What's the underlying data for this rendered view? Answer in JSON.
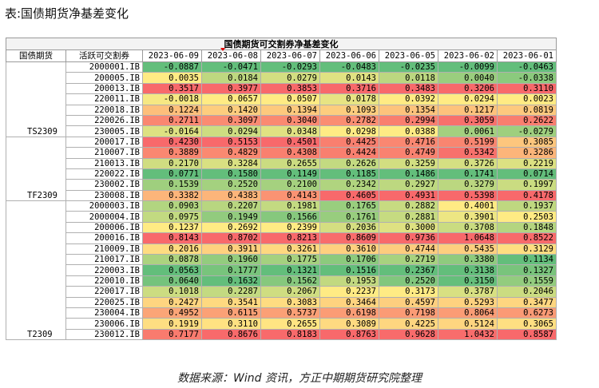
{
  "caption": "表:国债期货净基差变化",
  "table": {
    "title": "国债期货可交割券净基差变化",
    "header_left": [
      "国债期货",
      "活跃可交割券"
    ],
    "dates": [
      "2023-06-09",
      "2023-06-08",
      "2023-06-07",
      "2023-06-06",
      "2023-06-05",
      "2023-06-02",
      "2023-06-01"
    ],
    "groups": [
      {
        "contract": "TS2309",
        "bonds": [
          {
            "code": "2000001.IB",
            "values": [
              "-0.0887",
              "-0.0471",
              "-0.0293",
              "-0.0483",
              "-0.0235",
              "-0.0099",
              "-0.0463"
            ]
          },
          {
            "code": "200005.IB",
            "values": [
              "0.0035",
              "0.0184",
              "0.0279",
              "0.0143",
              "0.0118",
              "0.0040",
              "-0.0338"
            ]
          },
          {
            "code": "200013.IB",
            "values": [
              "0.3517",
              "0.3977",
              "0.3853",
              "0.3716",
              "0.3483",
              "0.3206",
              "0.3110"
            ]
          },
          {
            "code": "220011.IB",
            "values": [
              "-0.0018",
              "0.0657",
              "0.0507",
              "0.0178",
              "0.0392",
              "0.0294",
              "0.0023"
            ]
          },
          {
            "code": "220018.IB",
            "values": [
              "0.1224",
              "0.1420",
              "0.1394",
              "0.1093",
              "0.1354",
              "0.1217",
              "0.0819"
            ]
          },
          {
            "code": "220026.IB",
            "values": [
              "0.2711",
              "0.3097",
              "0.3040",
              "0.2782",
              "0.2994",
              "0.3059",
              "0.2622"
            ]
          },
          {
            "code": "230005.IB",
            "values": [
              "-0.0164",
              "0.0294",
              "0.0348",
              "0.0298",
              "0.0388",
              "0.0061",
              "-0.0279"
            ]
          }
        ]
      },
      {
        "contract": "TF2309",
        "bonds": [
          {
            "code": "200017.IB",
            "values": [
              "0.4230",
              "0.5153",
              "0.4501",
              "0.4425",
              "0.4716",
              "0.5199",
              "0.3085"
            ]
          },
          {
            "code": "210007.IB",
            "values": [
              "0.3889",
              "0.4829",
              "0.4308",
              "0.4424",
              "0.4749",
              "0.5342",
              "0.3286"
            ]
          },
          {
            "code": "210013.IB",
            "values": [
              "0.2170",
              "0.3284",
              "0.2655",
              "0.2626",
              "0.3259",
              "0.3726",
              "0.2219"
            ]
          },
          {
            "code": "220022.IB",
            "values": [
              "0.0771",
              "0.1580",
              "0.1149",
              "0.1185",
              "0.1486",
              "0.1741",
              "0.0714"
            ]
          },
          {
            "code": "230002.IB",
            "values": [
              "0.1539",
              "0.2520",
              "0.2100",
              "0.2342",
              "0.2927",
              "0.3279",
              "0.1997"
            ]
          },
          {
            "code": "230008.IB",
            "values": [
              "0.3382",
              "0.4383",
              "0.4143",
              "0.4605",
              "0.4931",
              "0.5398",
              "0.4178"
            ]
          }
        ]
      },
      {
        "contract": "T2309",
        "bonds": [
          {
            "code": "2000003.IB",
            "values": [
              "0.0903",
              "0.2207",
              "0.1981",
              "0.1765",
              "0.2882",
              "0.4001",
              "0.1937"
            ]
          },
          {
            "code": "2000004.IB",
            "values": [
              "0.0975",
              "0.1949",
              "0.1566",
              "0.1761",
              "0.2881",
              "0.3901",
              "0.2503"
            ]
          },
          {
            "code": "200006.IB",
            "values": [
              "0.1237",
              "0.2692",
              "0.2399",
              "0.2036",
              "0.3000",
              "0.3708",
              "0.1848"
            ]
          },
          {
            "code": "200016.IB",
            "values": [
              "0.8143",
              "0.8702",
              "0.8213",
              "0.8609",
              "0.9736",
              "1.0648",
              "0.8522"
            ]
          },
          {
            "code": "210009.IB",
            "values": [
              "0.2016",
              "0.3911",
              "0.3261",
              "0.3610",
              "0.4744",
              "0.5435",
              "0.3129"
            ]
          },
          {
            "code": "210017.IB",
            "values": [
              "0.0878",
              "0.1960",
              "0.1775",
              "0.1706",
              "0.2719",
              "0.3380",
              "0.1134"
            ]
          },
          {
            "code": "220003.IB",
            "values": [
              "0.0563",
              "0.1777",
              "0.1321",
              "0.1516",
              "0.2367",
              "0.3138",
              "0.1327"
            ]
          },
          {
            "code": "220010.IB",
            "values": [
              "0.0640",
              "0.1632",
              "0.1562",
              "0.1953",
              "0.2520",
              "0.3150",
              "0.1559"
            ]
          },
          {
            "code": "220017.IB",
            "values": [
              "0.1018",
              "0.2287",
              "0.2067",
              "0.2237",
              "0.3173",
              "0.3787",
              "0.2046"
            ]
          },
          {
            "code": "220025.IB",
            "values": [
              "0.2427",
              "0.3541",
              "0.3083",
              "0.3464",
              "0.4597",
              "0.5293",
              "0.3477"
            ]
          },
          {
            "code": "230004.IB",
            "values": [
              "0.4952",
              "0.6115",
              "0.5737",
              "0.6198",
              "0.7198",
              "0.8064",
              "0.6273"
            ]
          },
          {
            "code": "230006.IB",
            "values": [
              "0.1919",
              "0.3110",
              "0.2655",
              "0.3089",
              "0.4225",
              "0.5124",
              "0.3065"
            ]
          },
          {
            "code": "230012.IB",
            "values": [
              "0.7177",
              "0.8676",
              "0.8183",
              "0.8763",
              "0.9628",
              "1.0432",
              "0.8587"
            ]
          }
        ]
      }
    ]
  },
  "colors": {
    "low": "#63be7b",
    "mid": "#ffeb84",
    "high": "#f8696b"
  },
  "source": "数据来源：Wind 资讯，方正中期期货研究院整理"
}
